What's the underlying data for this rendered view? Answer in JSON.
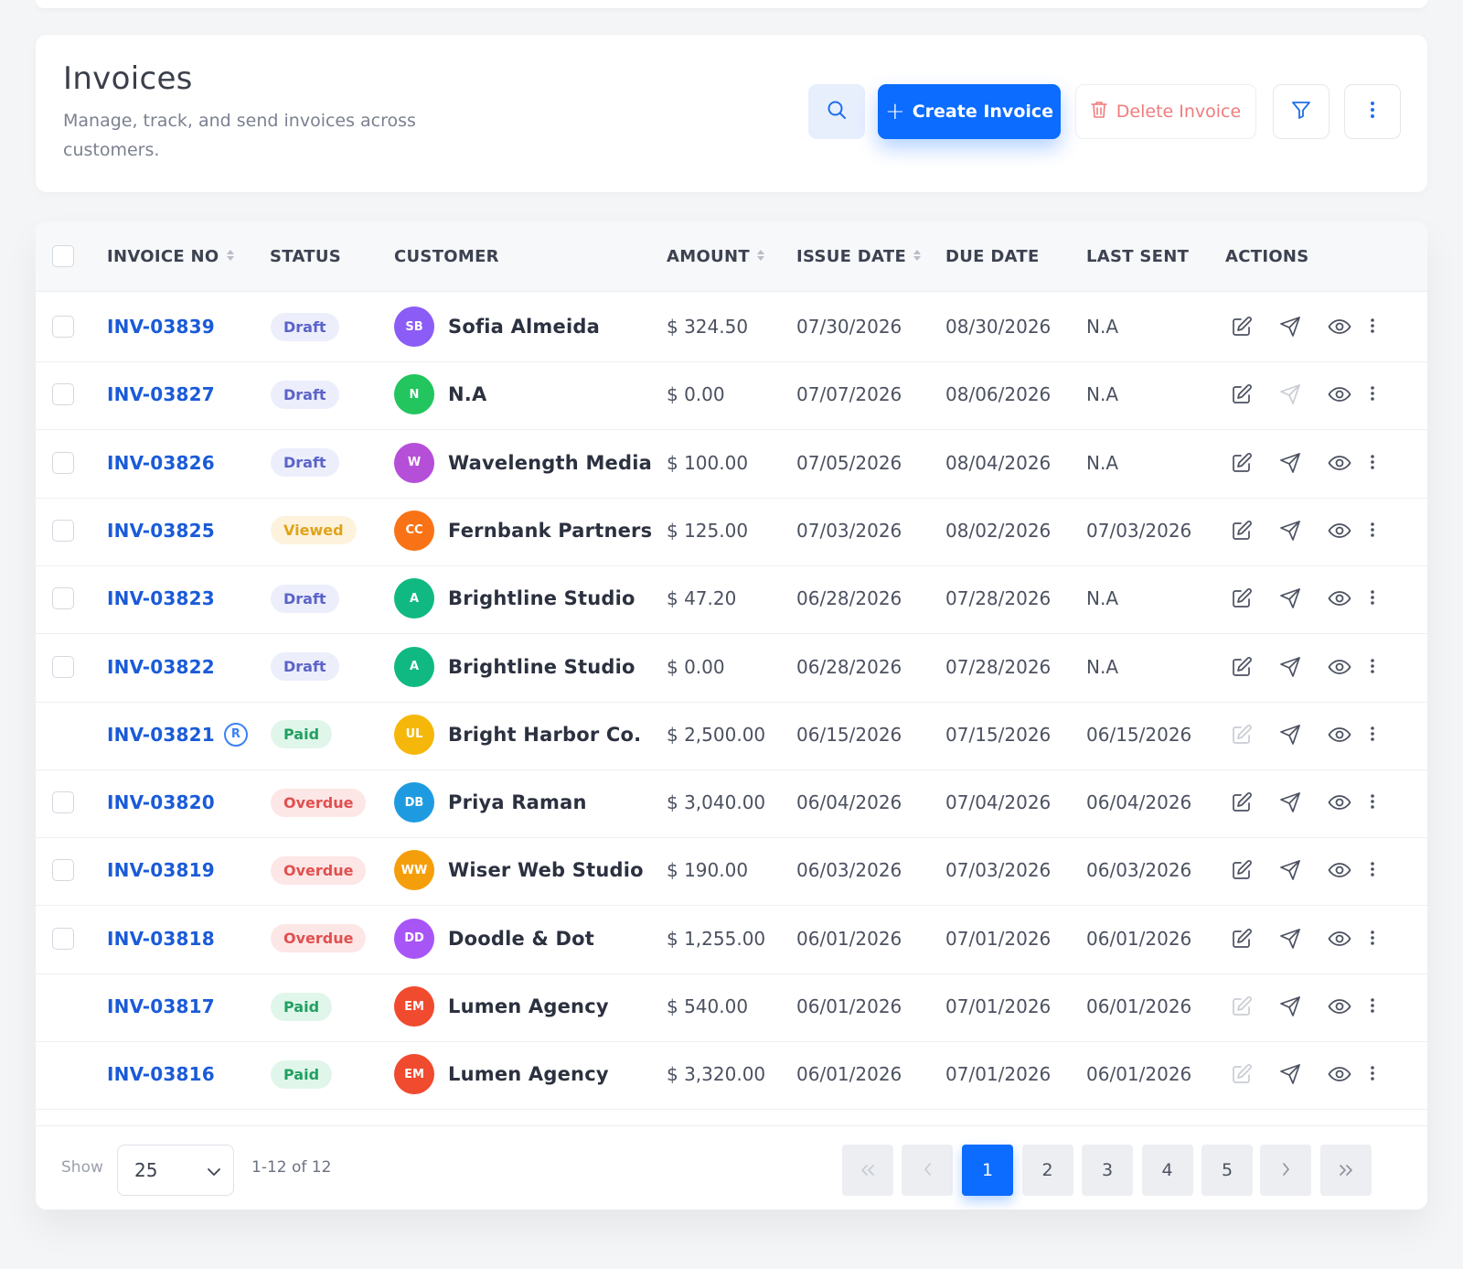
{
  "header": {
    "title": "Invoices",
    "subtitle": "Manage, track, and send invoices across customers.",
    "search_icon": "search-icon",
    "create_label": "Create Invoice",
    "delete_label": "Delete Invoice",
    "filter_icon": "filter-icon",
    "more_icon": "vertical-dots-icon"
  },
  "colors": {
    "primary": "#0b6cff",
    "link": "#1a5bd8",
    "danger": "#f07c7c"
  },
  "table": {
    "columns": {
      "invoice_no": "INVOICE NO",
      "status": "STATUS",
      "customer": "CUSTOMER",
      "amount": "AMOUNT",
      "issue_date": "ISSUE DATE",
      "due_date": "DUE DATE",
      "last_sent": "LAST SENT",
      "actions": "ACTIONS"
    },
    "rows": [
      {
        "invoice": "INV-03839",
        "status": "Draft",
        "initials": "SB",
        "avatar": "#8b5cf6",
        "customer": "Sofia Almeida",
        "amount": "$ 324.50",
        "issue": "07/30/2026",
        "due": "08/30/2026",
        "sent": "N.A",
        "checkbox": true,
        "recurring": false,
        "edit_enabled": true,
        "send_enabled": true
      },
      {
        "invoice": "INV-03827",
        "status": "Draft",
        "initials": "N",
        "avatar": "#22c55e",
        "customer": "N.A",
        "amount": "$ 0.00",
        "issue": "07/07/2026",
        "due": "08/06/2026",
        "sent": "N.A",
        "checkbox": true,
        "recurring": false,
        "edit_enabled": true,
        "send_enabled": false
      },
      {
        "invoice": "INV-03826",
        "status": "Draft",
        "initials": "W",
        "avatar": "#b64fd8",
        "customer": "Wavelength Media",
        "amount": "$ 100.00",
        "issue": "07/05/2026",
        "due": "08/04/2026",
        "sent": "N.A",
        "checkbox": true,
        "recurring": false,
        "edit_enabled": true,
        "send_enabled": true
      },
      {
        "invoice": "INV-03825",
        "status": "Viewed",
        "initials": "CC",
        "avatar": "#f97316",
        "customer": "Fernbank Partners",
        "amount": "$ 125.00",
        "issue": "07/03/2026",
        "due": "08/02/2026",
        "sent": "07/03/2026",
        "checkbox": true,
        "recurring": false,
        "edit_enabled": true,
        "send_enabled": true
      },
      {
        "invoice": "INV-03823",
        "status": "Draft",
        "initials": "A",
        "avatar": "#10b981",
        "customer": "Brightline Studio",
        "amount": "$ 47.20",
        "issue": "06/28/2026",
        "due": "07/28/2026",
        "sent": "N.A",
        "checkbox": true,
        "recurring": false,
        "edit_enabled": true,
        "send_enabled": true
      },
      {
        "invoice": "INV-03822",
        "status": "Draft",
        "initials": "A",
        "avatar": "#10b981",
        "customer": "Brightline Studio",
        "amount": "$ 0.00",
        "issue": "06/28/2026",
        "due": "07/28/2026",
        "sent": "N.A",
        "checkbox": true,
        "recurring": false,
        "edit_enabled": true,
        "send_enabled": true
      },
      {
        "invoice": "INV-03821",
        "status": "Paid",
        "initials": "UL",
        "avatar": "#f5b70a",
        "customer": "Bright Harbor Co.",
        "amount": "$ 2,500.00",
        "issue": "06/15/2026",
        "due": "07/15/2026",
        "sent": "06/15/2026",
        "checkbox": false,
        "recurring": true,
        "recurring_label": "R",
        "edit_enabled": false,
        "send_enabled": true
      },
      {
        "invoice": "INV-03820",
        "status": "Overdue",
        "initials": "DB",
        "avatar": "#1e9be0",
        "customer": "Priya Raman",
        "amount": "$ 3,040.00",
        "issue": "06/04/2026",
        "due": "07/04/2026",
        "sent": "06/04/2026",
        "checkbox": true,
        "recurring": false,
        "edit_enabled": true,
        "send_enabled": true
      },
      {
        "invoice": "INV-03819",
        "status": "Overdue",
        "initials": "WW",
        "avatar": "#f59e0b",
        "customer": "Wiser Web Studio",
        "amount": "$ 190.00",
        "issue": "06/03/2026",
        "due": "07/03/2026",
        "sent": "06/03/2026",
        "checkbox": true,
        "recurring": false,
        "edit_enabled": true,
        "send_enabled": true
      },
      {
        "invoice": "INV-03818",
        "status": "Overdue",
        "initials": "DD",
        "avatar": "#a855f7",
        "customer": "Doodle & Dot",
        "amount": "$ 1,255.00",
        "issue": "06/01/2026",
        "due": "07/01/2026",
        "sent": "06/01/2026",
        "checkbox": true,
        "recurring": false,
        "edit_enabled": true,
        "send_enabled": true
      },
      {
        "invoice": "INV-03817",
        "status": "Paid",
        "initials": "EM",
        "avatar": "#f04a2f",
        "customer": "Lumen Agency",
        "amount": "$ 540.00",
        "issue": "06/01/2026",
        "due": "07/01/2026",
        "sent": "06/01/2026",
        "checkbox": false,
        "recurring": false,
        "edit_enabled": false,
        "send_enabled": true
      },
      {
        "invoice": "INV-03816",
        "status": "Paid",
        "initials": "EM",
        "avatar": "#f04a2f",
        "customer": "Lumen Agency",
        "amount": "$ 3,320.00",
        "issue": "06/01/2026",
        "due": "07/01/2026",
        "sent": "06/01/2026",
        "checkbox": false,
        "recurring": false,
        "edit_enabled": false,
        "send_enabled": true
      }
    ]
  },
  "status_styles": {
    "Draft": {
      "bg": "#eceefb",
      "fg": "#5b63c8"
    },
    "Viewed": {
      "bg": "#fdf3dc",
      "fg": "#e1a21a"
    },
    "Paid": {
      "bg": "#e1f6ea",
      "fg": "#22a062"
    },
    "Overdue": {
      "bg": "#fde6e6",
      "fg": "#e0504f"
    }
  },
  "footer": {
    "show_label": "Show",
    "page_size": "25",
    "range": "1-12 of 12",
    "pages": [
      "1",
      "2",
      "3",
      "4",
      "5"
    ],
    "current_page": "1"
  }
}
